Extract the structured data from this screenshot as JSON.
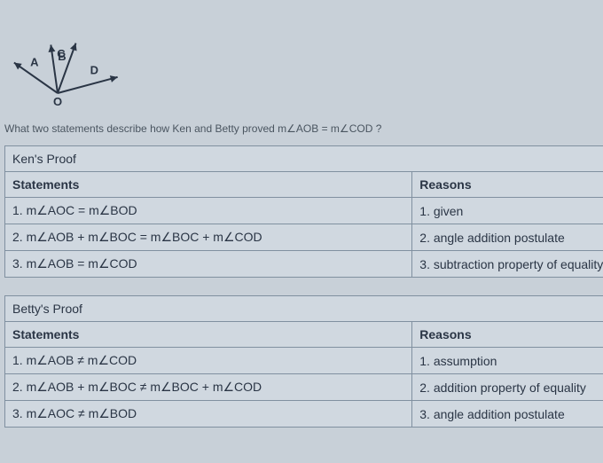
{
  "diagram": {
    "origin_label": "O",
    "rays": [
      {
        "label": "A",
        "angle": 145,
        "length": 60
      },
      {
        "label": "B",
        "angle": 98,
        "length": 55
      },
      {
        "label": "C",
        "angle": 70,
        "length": 60
      },
      {
        "label": "D",
        "angle": 15,
        "length": 70
      }
    ],
    "stroke_color": "#2a3545",
    "stroke_width": 2
  },
  "question": "What two statements describe how Ken and Betty proved  m∠AOB  =  m∠COD ?",
  "kens_proof": {
    "title": "Ken's Proof",
    "headers": {
      "left": "Statements",
      "right": "Reasons"
    },
    "rows": [
      {
        "statement": "1. m∠AOC  =  m∠BOD",
        "reason": "1. given"
      },
      {
        "statement": "2. m∠AOB  +  m∠BOC  =  m∠BOC  +  m∠COD",
        "reason": "2. angle addition postulate"
      },
      {
        "statement": "3. m∠AOB  =  m∠COD",
        "reason": "3. subtraction property of equality"
      }
    ]
  },
  "bettys_proof": {
    "title": "Betty's Proof",
    "headers": {
      "left": "Statements",
      "right": "Reasons"
    },
    "rows": [
      {
        "statement": "1. m∠AOB  ≠  m∠COD",
        "reason": "1. assumption"
      },
      {
        "statement": "2. m∠AOB  +  m∠BOC  ≠  m∠BOC  +  m∠COD",
        "reason": "2. addition property of equality"
      },
      {
        "statement": "3. m∠AOC  ≠  m∠BOD",
        "reason": "3. angle addition postulate"
      }
    ]
  }
}
